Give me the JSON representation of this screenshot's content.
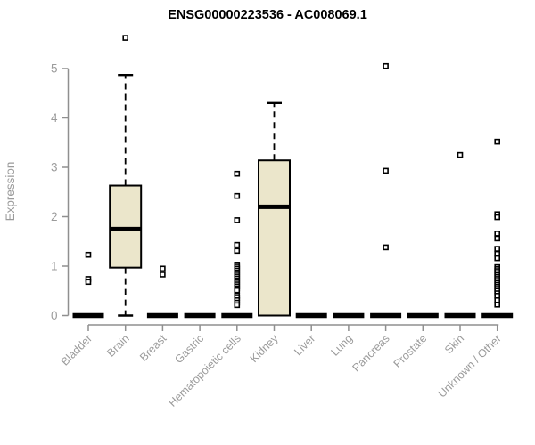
{
  "chart_data": {
    "type": "boxplot",
    "title": "ENSG00000223536 - AC008069.1",
    "ylabel": "Expression",
    "xlabel": "",
    "ylim": [
      0,
      5.8
    ],
    "yticks": [
      0,
      1,
      2,
      3,
      4,
      5
    ],
    "grid": false,
    "legend": "none",
    "box_fill": "#ebe6cb",
    "box_stroke": "#000000",
    "axis_color": "#8f8f8f",
    "label_color": "#9b9b9b",
    "categories": [
      "Bladder",
      "Brain",
      "Breast",
      "Gastric",
      "Hematopoietic cells",
      "Kidney",
      "Liver",
      "Lung",
      "Pancreas",
      "Prostate",
      "Skin",
      "Unknown / Other"
    ],
    "boxes": [
      {
        "category": "Bladder",
        "whisker_low": 0,
        "q1": 0,
        "median": 0,
        "q3": 0,
        "whisker_high": 0,
        "outliers": [
          1.23,
          0.74,
          0.68
        ]
      },
      {
        "category": "Brain",
        "whisker_low": 0,
        "q1": 0.97,
        "median": 1.75,
        "q3": 2.63,
        "whisker_high": 4.87,
        "outliers": [
          5.62
        ]
      },
      {
        "category": "Breast",
        "whisker_low": 0,
        "q1": 0,
        "median": 0,
        "q3": 0,
        "whisker_high": 0,
        "outliers": [
          0.95,
          0.83
        ]
      },
      {
        "category": "Gastric",
        "whisker_low": 0,
        "q1": 0,
        "median": 0,
        "q3": 0,
        "whisker_high": 0,
        "outliers": []
      },
      {
        "category": "Hematopoietic cells",
        "whisker_low": 0,
        "q1": 0,
        "median": 0,
        "q3": 0,
        "whisker_high": 0,
        "outliers": [
          2.87,
          2.42,
          1.93,
          1.43,
          1.31,
          1.03,
          0.99,
          0.95,
          0.91,
          0.87,
          0.83,
          0.79,
          0.75,
          0.71,
          0.67,
          0.63,
          0.59,
          0.55,
          0.51,
          0.4,
          0.36,
          0.31,
          0.26,
          0.21
        ]
      },
      {
        "category": "Kidney",
        "whisker_low": 0,
        "q1": 0,
        "median": 2.2,
        "q3": 3.14,
        "whisker_high": 4.3,
        "outliers": []
      },
      {
        "category": "Liver",
        "whisker_low": 0,
        "q1": 0,
        "median": 0,
        "q3": 0,
        "whisker_high": 0,
        "outliers": []
      },
      {
        "category": "Lung",
        "whisker_low": 0,
        "q1": 0,
        "median": 0,
        "q3": 0,
        "whisker_high": 0,
        "outliers": []
      },
      {
        "category": "Pancreas",
        "whisker_low": 0,
        "q1": 0,
        "median": 0,
        "q3": 0,
        "whisker_high": 0,
        "outliers": [
          5.05,
          2.93,
          1.38
        ]
      },
      {
        "category": "Prostate",
        "whisker_low": 0,
        "q1": 0,
        "median": 0,
        "q3": 0,
        "whisker_high": 0,
        "outliers": []
      },
      {
        "category": "Skin",
        "whisker_low": 0,
        "q1": 0,
        "median": 0,
        "q3": 0,
        "whisker_high": 0,
        "outliers": [
          3.25
        ]
      },
      {
        "category": "Unknown / Other",
        "whisker_low": 0,
        "q1": 0,
        "median": 0,
        "q3": 0,
        "whisker_high": 0,
        "outliers": [
          3.52,
          2.05,
          1.99,
          1.66,
          1.56,
          1.35,
          1.25,
          1.16,
          0.98,
          0.94,
          0.9,
          0.86,
          0.82,
          0.78,
          0.74,
          0.7,
          0.66,
          0.62,
          0.58,
          0.54,
          0.5,
          0.45,
          0.4,
          0.31,
          0.22
        ]
      }
    ]
  }
}
